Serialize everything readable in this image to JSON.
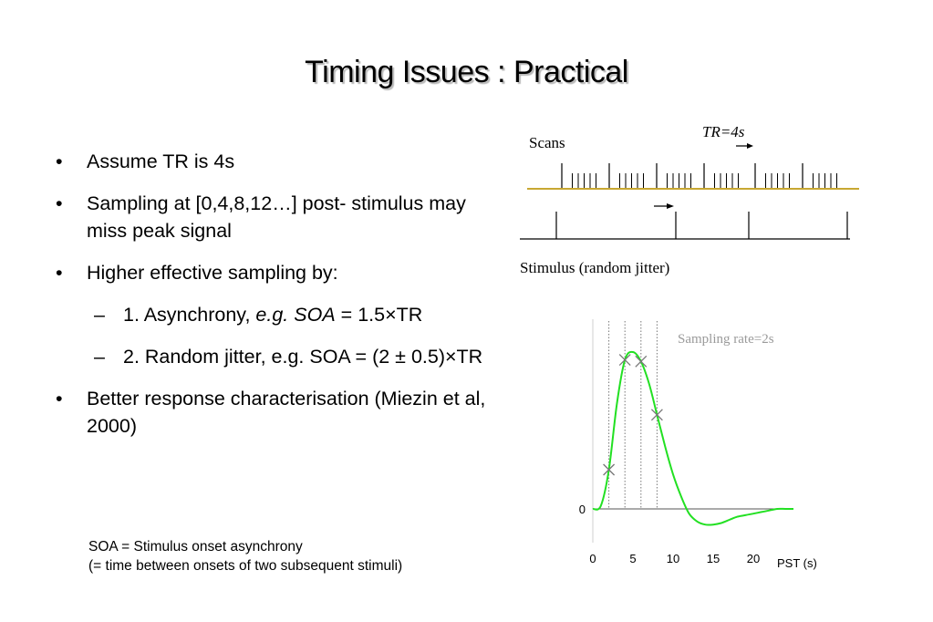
{
  "title": "Timing Issues : Practical",
  "bullets": {
    "b1": "Assume TR is 4s",
    "b2": "Sampling at [0,4,8,12…] post- stimulus may miss peak signal",
    "b3": "Higher effective sampling by:",
    "s1_pre": "1. Asynchrony,",
    "s1_eg": "e.g.",
    "s1_soa": "SOA",
    "s1_post": "= 1.5×TR",
    "s2": "2. Random jitter, e.g. SOA = (2 ± 0.5)×TR",
    "b4": "Better response characterisation (Miezin et al, 2000)",
    "bullet_mark": "•",
    "sub_mark": "–"
  },
  "footnote": {
    "line1": "SOA = Stimulus onset asynchrony",
    "line2": "(= time between onsets of two subsequent stimuli)"
  },
  "timeline": {
    "scans_label": "Scans",
    "tr_label": "TR=4s",
    "stimulus_label": "Stimulus (random jitter)",
    "scan_line_color": "#c8a832"
  },
  "chart_data": {
    "type": "line",
    "annotation": "Sampling rate=2s",
    "xlabel": "PST (s)",
    "x_ticks": [
      "0",
      "5",
      "10",
      "15",
      "20"
    ],
    "y_ticks": [
      "0"
    ],
    "xlim": [
      0,
      25
    ],
    "sample_times": [
      2,
      4,
      6,
      8
    ],
    "curve_color": "#22e022",
    "series": [
      {
        "x": [
          0,
          1,
          2,
          3,
          4,
          5,
          6,
          7,
          8,
          9,
          10,
          11,
          12,
          13,
          14,
          15,
          16,
          17,
          18,
          19,
          20,
          21,
          22,
          23,
          24,
          25
        ],
        "y": [
          0,
          0.02,
          0.25,
          0.67,
          0.95,
          1.0,
          0.94,
          0.8,
          0.6,
          0.4,
          0.22,
          0.08,
          -0.03,
          -0.08,
          -0.1,
          -0.1,
          -0.09,
          -0.07,
          -0.05,
          -0.04,
          -0.03,
          -0.02,
          -0.01,
          0,
          0,
          0
        ]
      }
    ]
  }
}
